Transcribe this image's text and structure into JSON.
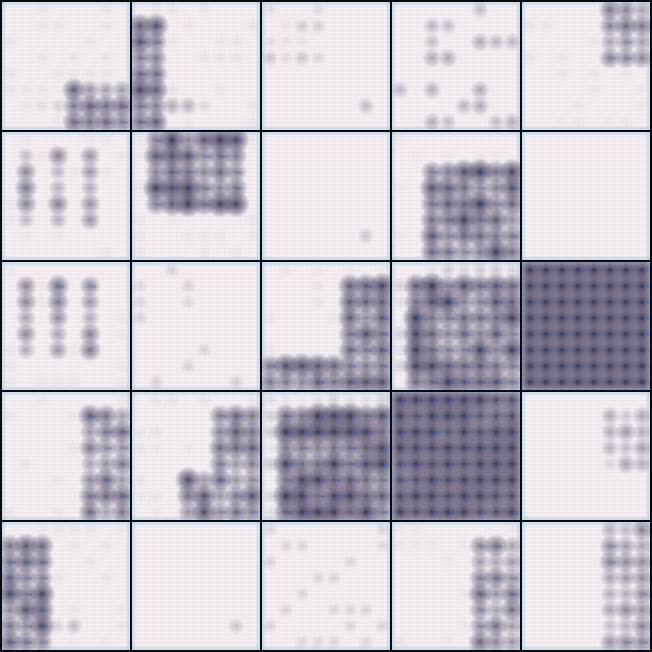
{
  "grid": {
    "rows": 5,
    "cols": 5,
    "background_color": "#0b0b0b",
    "tile_base_color": "#f7f1f4",
    "dot_color": "#1b1a33",
    "highlight_color": "#2f63d8",
    "edge_tint_color": "#a9cde9",
    "tiles": [
      {
        "pattern": "bottom-right-blob",
        "intensity": 0.35
      },
      {
        "pattern": "left-column-and-bottom",
        "intensity": 0.6
      },
      {
        "pattern": "sparse-top-left",
        "intensity": 0.2
      },
      {
        "pattern": "sparse-mixed",
        "intensity": 0.3
      },
      {
        "pattern": "top-right-spot",
        "intensity": 0.35
      },
      {
        "pattern": "sparse-left-grid",
        "intensity": 0.35
      },
      {
        "pattern": "dense-top-block",
        "intensity": 0.7
      },
      {
        "pattern": "nearly-empty",
        "intensity": 0.08
      },
      {
        "pattern": "lower-right-block",
        "intensity": 0.7
      },
      {
        "pattern": "empty",
        "intensity": 0.0
      },
      {
        "pattern": "sparse-left-grid",
        "intensity": 0.4
      },
      {
        "pattern": "sparse-faint",
        "intensity": 0.15
      },
      {
        "pattern": "bottom-row-and-right",
        "intensity": 0.6
      },
      {
        "pattern": "dense-block",
        "intensity": 0.75
      },
      {
        "pattern": "full-dark",
        "intensity": 1.0
      },
      {
        "pattern": "right-column",
        "intensity": 0.45
      },
      {
        "pattern": "right-diagonal",
        "intensity": 0.5
      },
      {
        "pattern": "dense-block",
        "intensity": 0.85
      },
      {
        "pattern": "dense-block-heavy",
        "intensity": 0.95
      },
      {
        "pattern": "right-spot",
        "intensity": 0.25
      },
      {
        "pattern": "left-column-cluster",
        "intensity": 0.55
      },
      {
        "pattern": "nearly-empty",
        "intensity": 0.06
      },
      {
        "pattern": "sparse-faint",
        "intensity": 0.12
      },
      {
        "pattern": "right-column",
        "intensity": 0.4
      },
      {
        "pattern": "right-spot-column",
        "intensity": 0.3
      }
    ]
  }
}
